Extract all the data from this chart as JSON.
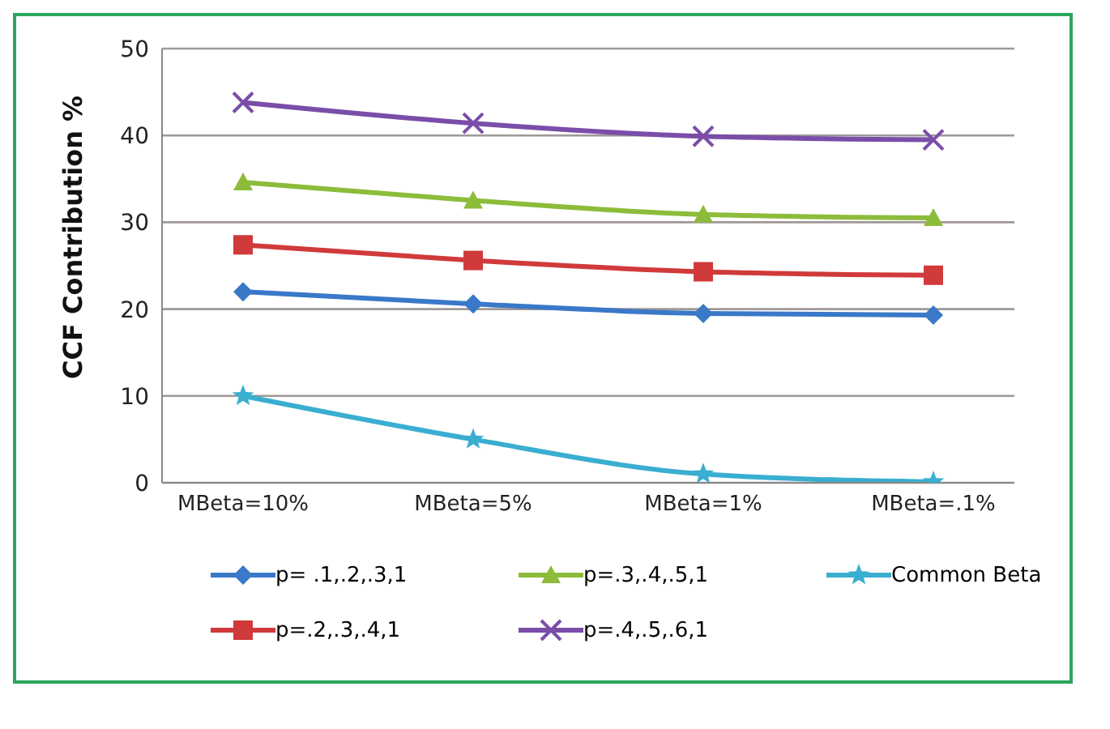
{
  "chart_data": {
    "type": "line",
    "ylabel": "CCF  Contribution %",
    "categories": [
      "MBeta=10%",
      "MBeta=5%",
      "MBeta=1%",
      "MBeta=.1%"
    ],
    "ylim": [
      0,
      50
    ],
    "yticks": [
      0,
      10,
      20,
      30,
      40,
      50
    ],
    "grid": "y",
    "legend": "bottom",
    "line_style": "solid",
    "series": [
      {
        "name": "p= .1,.2,.3,1",
        "color": "#3a78c8",
        "marker": "diamond",
        "values": [
          22,
          20.6,
          19.5,
          19.3
        ]
      },
      {
        "name": "p=.2,.3,.4,1",
        "color": "#d03a3a",
        "marker": "square",
        "values": [
          27.4,
          25.6,
          24.3,
          23.9
        ]
      },
      {
        "name": "p=.3,.4,.5,1",
        "color": "#8cbc3a",
        "marker": "triangle",
        "values": [
          34.6,
          32.5,
          30.9,
          30.5
        ]
      },
      {
        "name": "p=.4,.5,.6,1",
        "color": "#7a4ea8",
        "marker": "cross",
        "values": [
          43.8,
          41.4,
          39.9,
          39.5
        ]
      },
      {
        "name": "Common Beta",
        "color": "#3aaed0",
        "marker": "star",
        "values": [
          10,
          5,
          1,
          0.1
        ]
      }
    ]
  }
}
